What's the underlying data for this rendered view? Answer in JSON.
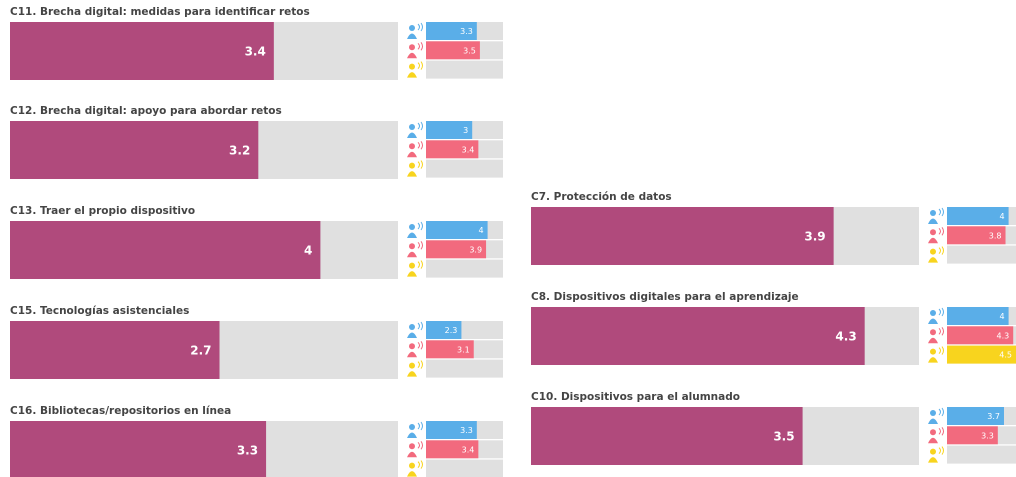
{
  "chart_data": [
    {
      "type": "bar",
      "title": "C11. Brecha digital: medidas para identificar retos",
      "xlim": [
        0,
        5
      ],
      "values": [
        3.4
      ],
      "color": "#b04a7c",
      "group_values": [
        3.3,
        3.5,
        null
      ],
      "group_colors": [
        "#5aaee8",
        "#f26a7e",
        "#f8d41e"
      ]
    },
    {
      "type": "bar",
      "title": "C12. Brecha digital: apoyo para abordar retos",
      "xlim": [
        0,
        5
      ],
      "values": [
        3.2
      ],
      "color": "#b04a7c",
      "group_values": [
        3,
        3.4,
        null
      ],
      "group_colors": [
        "#5aaee8",
        "#f26a7e",
        "#f8d41e"
      ]
    },
    {
      "type": "bar",
      "title": "C13. Traer el propio dispositivo",
      "xlim": [
        0,
        5
      ],
      "values": [
        4
      ],
      "color": "#b04a7c",
      "group_values": [
        4,
        3.9,
        null
      ],
      "group_colors": [
        "#5aaee8",
        "#f26a7e",
        "#f8d41e"
      ]
    },
    {
      "type": "bar",
      "title": "C15. Tecnologías asistenciales",
      "xlim": [
        0,
        5
      ],
      "values": [
        2.7
      ],
      "color": "#b04a7c",
      "group_values": [
        2.3,
        3.1,
        null
      ],
      "group_colors": [
        "#5aaee8",
        "#f26a7e",
        "#f8d41e"
      ]
    },
    {
      "type": "bar",
      "title": "C16. Bibliotecas/repositorios en línea",
      "xlim": [
        0,
        5
      ],
      "values": [
        3.3
      ],
      "color": "#b04a7c",
      "group_values": [
        3.3,
        3.4,
        null
      ],
      "group_colors": [
        "#5aaee8",
        "#f26a7e",
        "#f8d41e"
      ]
    },
    {
      "type": "bar",
      "title": "C7. Protección de datos",
      "xlim": [
        0,
        5
      ],
      "values": [
        3.9
      ],
      "color": "#b04a7c",
      "group_values": [
        4,
        3.8,
        null
      ],
      "group_colors": [
        "#5aaee8",
        "#f26a7e",
        "#f8d41e"
      ]
    },
    {
      "type": "bar",
      "title": "C8. Dispositivos digitales para el aprendizaje",
      "xlim": [
        0,
        5
      ],
      "values": [
        4.3
      ],
      "color": "#b04a7c",
      "group_values": [
        4,
        4.3,
        4.5
      ],
      "group_colors": [
        "#5aaee8",
        "#f26a7e",
        "#f8d41e"
      ]
    },
    {
      "type": "bar",
      "title": "C10. Dispositivos para el alumnado",
      "xlim": [
        0,
        5
      ],
      "values": [
        3.5
      ],
      "color": "#b04a7c",
      "group_values": [
        3.7,
        3.3,
        null
      ],
      "group_colors": [
        "#5aaee8",
        "#f26a7e",
        "#f8d41e"
      ]
    }
  ]
}
